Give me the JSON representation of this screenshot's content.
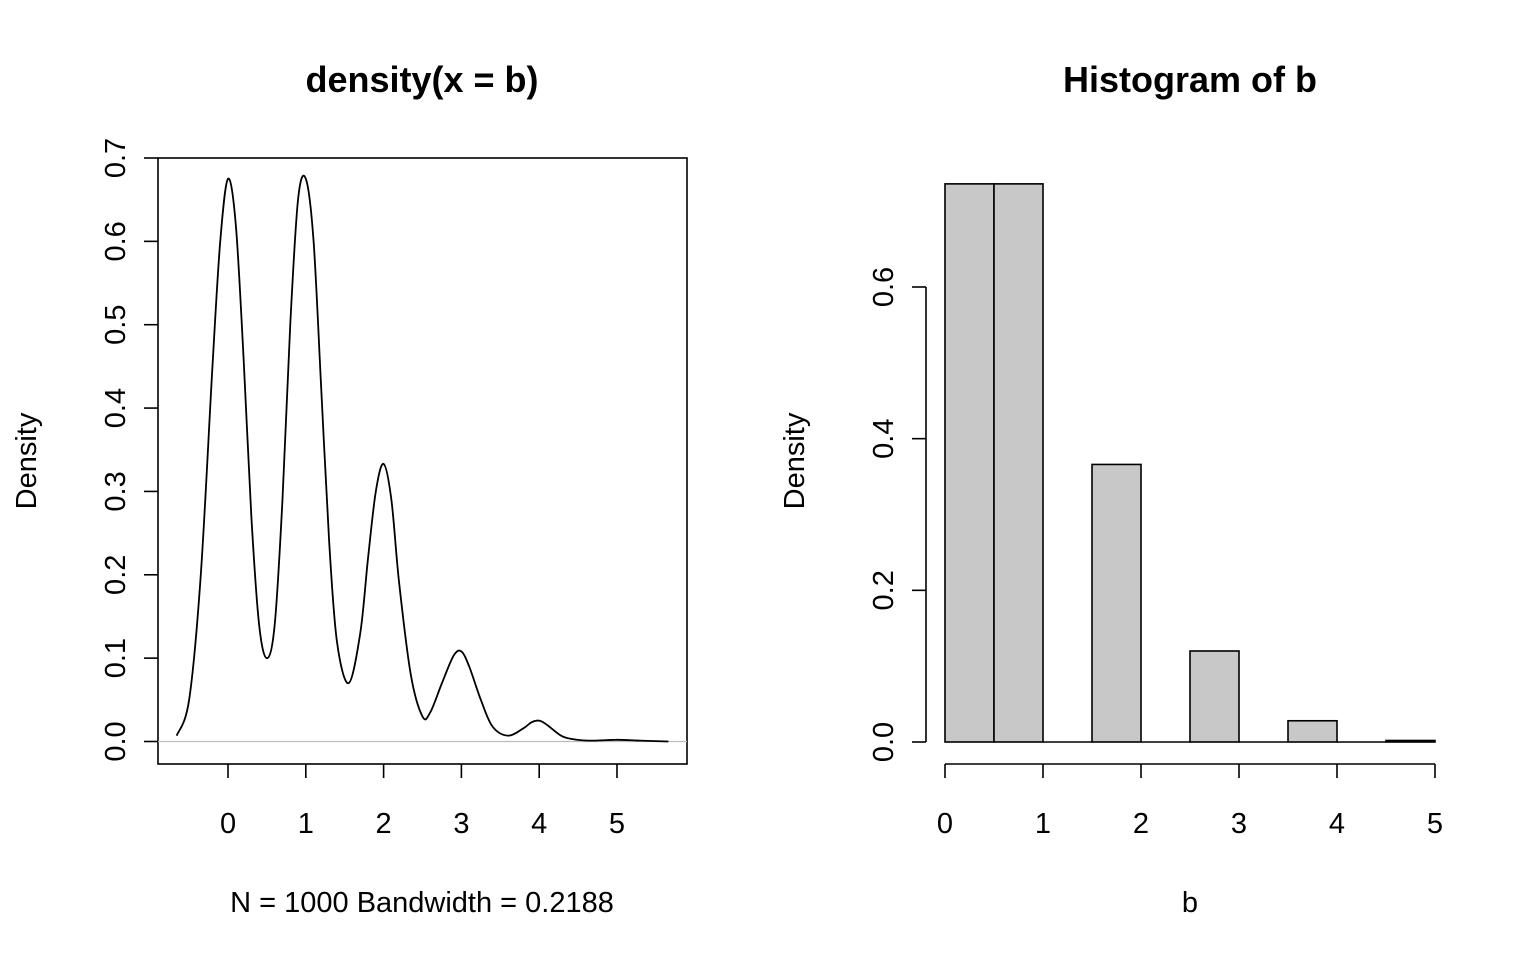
{
  "chart_data": [
    {
      "type": "line",
      "title": "density(x = b)",
      "xlabel": "N = 1000   Bandwidth = 0.2188",
      "ylabel": "Density",
      "xlim": [
        -0.9,
        5.9
      ],
      "ylim": [
        -0.027,
        0.7
      ],
      "xticks": [
        "0",
        "1",
        "2",
        "3",
        "4",
        "5"
      ],
      "yticks": [
        "0.0",
        "0.1",
        "0.2",
        "0.3",
        "0.4",
        "0.5",
        "0.6",
        "0.7"
      ],
      "grid": false,
      "box": true,
      "baseline": 0,
      "series": [
        {
          "x": [
            -0.66,
            -0.5,
            -0.35,
            -0.2,
            -0.1,
            0.0,
            0.1,
            0.2,
            0.3,
            0.4,
            0.5,
            0.6,
            0.7,
            0.8,
            0.9,
            1.0,
            1.1,
            1.2,
            1.3,
            1.4,
            1.55,
            1.7,
            1.8,
            1.9,
            2.0,
            2.1,
            2.2,
            2.35,
            2.5,
            2.6,
            2.75,
            2.9,
            3.0,
            3.1,
            3.25,
            3.4,
            3.6,
            3.8,
            3.9,
            4.0,
            4.1,
            4.3,
            4.5,
            4.7,
            5.0,
            5.3,
            5.66
          ],
          "y": [
            0.007,
            0.05,
            0.2,
            0.45,
            0.6,
            0.675,
            0.62,
            0.46,
            0.27,
            0.14,
            0.1,
            0.14,
            0.29,
            0.5,
            0.65,
            0.675,
            0.6,
            0.42,
            0.24,
            0.12,
            0.07,
            0.13,
            0.22,
            0.3,
            0.333,
            0.29,
            0.19,
            0.08,
            0.03,
            0.035,
            0.07,
            0.103,
            0.108,
            0.09,
            0.05,
            0.018,
            0.007,
            0.016,
            0.023,
            0.025,
            0.02,
            0.006,
            0.002,
            0.001,
            0.002,
            0.001,
            0.0
          ]
        }
      ]
    },
    {
      "type": "bar",
      "title": "Histogram of b",
      "xlabel": "b",
      "ylabel": "Density",
      "xlim": [
        0,
        5
      ],
      "ylim": [
        0,
        0.75
      ],
      "xticks": [
        "0",
        "1",
        "2",
        "3",
        "4",
        "5"
      ],
      "yticks": [
        "0.0",
        "0.2",
        "0.4",
        "0.6"
      ],
      "grid": false,
      "bar_color": "#c8c8c8",
      "bins": [
        {
          "from": 0.0,
          "to": 0.5,
          "value": 0.736
        },
        {
          "from": 0.5,
          "to": 1.0,
          "value": 0.736
        },
        {
          "from": 1.0,
          "to": 1.5,
          "value": 0.0
        },
        {
          "from": 1.5,
          "to": 2.0,
          "value": 0.366
        },
        {
          "from": 2.0,
          "to": 2.5,
          "value": 0.0
        },
        {
          "from": 2.5,
          "to": 3.0,
          "value": 0.12
        },
        {
          "from": 3.0,
          "to": 3.5,
          "value": 0.0
        },
        {
          "from": 3.5,
          "to": 4.0,
          "value": 0.028
        },
        {
          "from": 4.0,
          "to": 4.5,
          "value": 0.0
        },
        {
          "from": 4.5,
          "to": 5.0,
          "value": 0.002
        }
      ]
    }
  ]
}
